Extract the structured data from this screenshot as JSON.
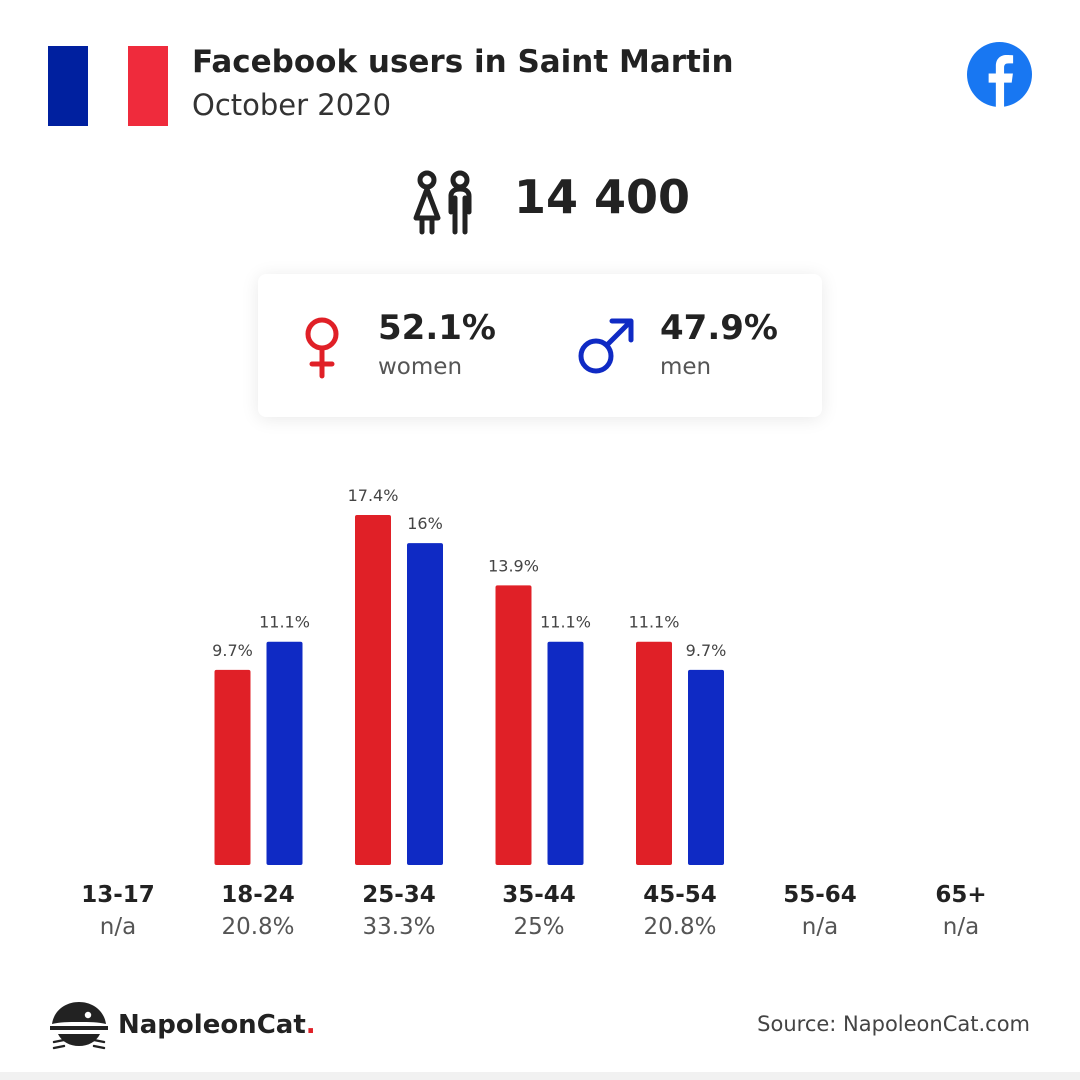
{
  "header": {
    "title": "Facebook users in Saint Martin",
    "subtitle": "October 2020",
    "flag_icon": "france-flag-icon",
    "flag_colors": [
      "#00209f",
      "#ffffff",
      "#ef2b3c"
    ],
    "platform_icon": "facebook-icon",
    "platform_color": "#1877f2"
  },
  "total": {
    "icon": "people-icon",
    "value": "14 400"
  },
  "gender": {
    "women": {
      "icon": "female-symbol-icon",
      "percent": "52.1%",
      "label": "women",
      "color": "#e02027"
    },
    "men": {
      "icon": "male-symbol-icon",
      "percent": "47.9%",
      "label": "men",
      "color": "#0f2ac4"
    }
  },
  "chart_data": {
    "type": "bar",
    "categories": [
      "13-17",
      "18-24",
      "25-34",
      "35-44",
      "45-54",
      "55-64",
      "65+"
    ],
    "category_totals": [
      "n/a",
      "20.8%",
      "33.3%",
      "25%",
      "20.8%",
      "n/a",
      "n/a"
    ],
    "series": [
      {
        "color": "#e02027",
        "values": [
          null,
          9.7,
          17.4,
          13.9,
          11.1,
          null,
          null
        ],
        "labels": [
          "",
          "9.7%",
          "17.4%",
          "13.9%",
          "11.1%",
          "",
          ""
        ]
      },
      {
        "color": "#0f2ac4",
        "values": [
          null,
          11.1,
          16,
          11.1,
          9.7,
          null,
          null
        ],
        "labels": [
          "",
          "11.1%",
          "16%",
          "11.1%",
          "9.7%",
          "",
          ""
        ]
      }
    ],
    "ylim": [
      0,
      17.4
    ],
    "grid": false
  },
  "footer": {
    "brand_icon": "napoleoncat-logo-icon",
    "brand_name": "NapoleonCat",
    "brand_dot": ".",
    "source": "Source: NapoleonCat.com"
  }
}
